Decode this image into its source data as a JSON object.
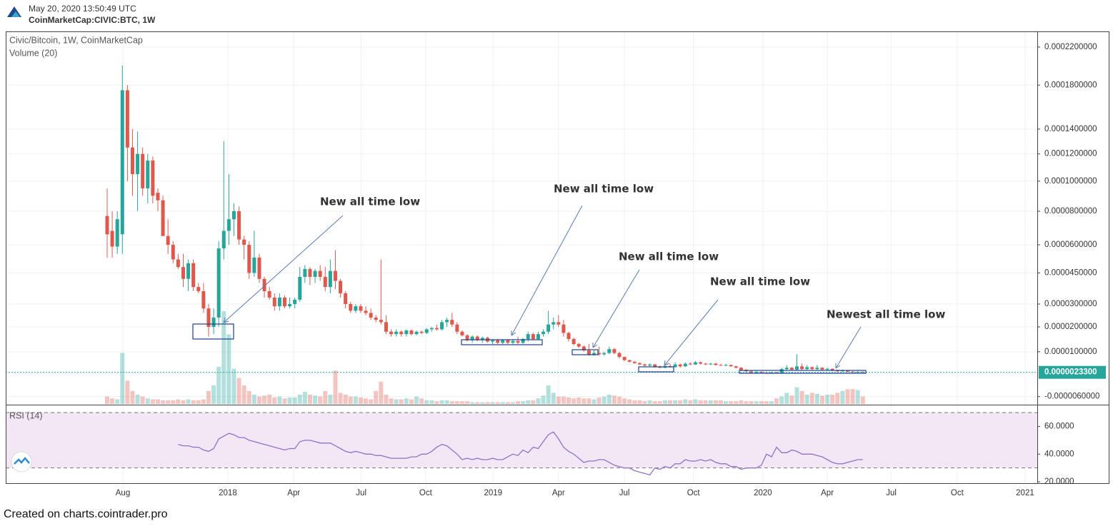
{
  "header": {
    "timestamp": "May 20, 2020 13:50:49 UTC",
    "symbol": "CoinMarketCap:CIVIC:BTC, 1W"
  },
  "footer": "Created on charts.cointrader.pro",
  "chart_data": {
    "type": "candlestick",
    "title": "Civic/Bitcoin, 1W, CoinMarketCap",
    "up_color": "#26a69a",
    "down_color": "#e0574b",
    "grid": true,
    "log_scale": true,
    "open": [
      7.7e-05,
      6.8e-05,
      5.9e-05,
      6.6e-05,
      0.000175,
      0.000125,
      0.000105,
      0.00012,
      9.5e-05,
      0.000115,
      9.2e-05,
      8.7e-05,
      6.5e-05,
      6e-05,
      5.2e-05,
      4.8e-05,
      4.2e-05,
      5e-05,
      3.8e-05,
      3.6e-05,
      2.8e-05,
      2e-05,
      2.4e-05,
      5.8e-05,
      6.8e-05,
      7.5e-05,
      8e-05,
      6.3e-05,
      6e-05,
      4.5e-05,
      5.3e-05,
      4.2e-05,
      3.6e-05,
      3.3e-05,
      2.9e-05,
      3.3e-05,
      2.9e-05,
      3e-05,
      3.2e-05,
      4.3e-05,
      4.7e-05,
      4.3e-05,
      4.6e-05,
      4.3e-05,
      3.8e-05,
      4.6e-05,
      4.1e-05,
      3.5e-05,
      3e-05,
      2.7e-05,
      2.9e-05,
      2.7e-05,
      2.6e-05,
      2.4e-05,
      2.3e-05,
      2.2e-05,
      1.8e-05,
      1.7e-05,
      1.8e-05,
      1.7e-05,
      1.85e-05,
      1.7e-05,
      1.8e-05,
      1.75e-05,
      1.9e-05,
      1.95e-05,
      1.9e-05,
      2.2e-05,
      2.3e-05,
      2.1e-05,
      1.8e-05,
      1.65e-05,
      1.45e-05,
      1.6e-05,
      1.45e-05,
      1.55e-05,
      1.4e-05,
      1.45e-05,
      1.35e-05,
      1.45e-05,
      1.35e-05,
      1.42e-05,
      1.35e-05,
      1.5e-05,
      1.7e-05,
      1.5e-05,
      1.7e-05,
      1.8e-05,
      2.1e-05,
      2.2e-05,
      2.1e-05,
      1.75e-05,
      1.5e-05,
      1.3e-05,
      1.2e-05,
      1.05e-05,
      9e-06,
      9.5e-06,
      9e-06,
      9.5e-06,
      1.1e-05,
      9.5e-06,
      8e-06,
      6.8e-06,
      6.2e-06,
      5.7e-06,
      5.2e-06,
      4.8e-06,
      5.2e-06,
      4.3e-06,
      4e-06,
      4.6e-06,
      4.2e-06,
      5.2e-06,
      4.5e-06,
      5.5e-06,
      5.2e-06,
      6e-06,
      5.5e-06,
      5.2e-06,
      5.5e-06,
      5e-06,
      4.8e-06,
      5e-06,
      4.5e-06,
      4e-06,
      3.2e-06,
      2.7e-06,
      2.2e-06,
      2.5e-06,
      2.2e-06,
      2e-06,
      2.3e-06,
      2.1e-06,
      3.5e-06,
      4e-06,
      3.3e-06,
      4.5e-06,
      3.5e-06,
      4.2e-06,
      3.5e-06,
      4e-06,
      3.3e-06,
      3.6e-06,
      3e-06,
      2.7e-06,
      3e-06,
      2.6e-06,
      2.4e-06,
      2.5e-06
    ],
    "high": [
      9.5e-05,
      8e-05,
      8e-05,
      0.0002,
      0.00018,
      0.00014,
      0.000138,
      0.000125,
      0.00012,
      0.000118,
      9.5e-05,
      9e-05,
      7.5e-05,
      6.2e-05,
      5.5e-05,
      5.5e-05,
      5.2e-05,
      5.2e-05,
      4e-05,
      4e-05,
      3e-05,
      2.8e-05,
      6.2e-05,
      0.00013,
      0.000105,
      8.5e-05,
      8.3e-05,
      6.5e-05,
      6.2e-05,
      6.8e-05,
      5.5e-05,
      4.3e-05,
      3.8e-05,
      3.5e-05,
      3.5e-05,
      3.4e-05,
      3.3e-05,
      3.3e-05,
      4.8e-05,
      4.9e-05,
      4.8e-05,
      4.7e-05,
      4.9e-05,
      4.8e-05,
      5.2e-05,
      5.7e-05,
      4.2e-05,
      3.6e-05,
      3.1e-05,
      3e-05,
      3e-05,
      2.9e-05,
      2.8e-05,
      2.5e-05,
      5.2e-05,
      2.5e-05,
      1.9e-05,
      1.9e-05,
      1.85e-05,
      1.9e-05,
      1.9e-05,
      1.85e-05,
      1.85e-05,
      1.95e-05,
      2e-05,
      2.1e-05,
      2.3e-05,
      2.4e-05,
      2.6e-05,
      2.2e-05,
      1.85e-05,
      1.7e-05,
      1.65e-05,
      1.65e-05,
      1.6e-05,
      1.6e-05,
      1.5e-05,
      1.5e-05,
      1.5e-05,
      1.5e-05,
      1.5e-05,
      1.6e-05,
      1.55e-05,
      1.8e-05,
      1.75e-05,
      1.8e-05,
      1.9e-05,
      2.7e-05,
      2.4e-05,
      2.5e-05,
      2.3e-05,
      1.8e-05,
      1.55e-05,
      1.35e-05,
      1.25e-05,
      1.3e-05,
      1.05e-05,
      1.2e-05,
      1e-05,
      1.2e-05,
      1.15e-05,
      1e-05,
      8.2e-06,
      7e-06,
      6.4e-06,
      6e-06,
      5.5e-06,
      5.5e-06,
      5.4e-06,
      4.8e-06,
      5e-06,
      5.5e-06,
      6e-06,
      5.5e-06,
      6e-06,
      6e-06,
      6.5e-06,
      6.3e-06,
      5.8e-06,
      5.8e-06,
      5.8e-06,
      5.5e-06,
      5.5e-06,
      5.2e-06,
      4.8e-06,
      4.2e-06,
      3.5e-06,
      3e-06,
      3e-06,
      2.8e-06,
      2.6e-06,
      2.6e-06,
      2.5e-06,
      4e-06,
      5e-06,
      4.2e-06,
      9e-06,
      5.5e-06,
      5e-06,
      4.5e-06,
      5e-06,
      4.2e-06,
      4e-06,
      3.8e-06,
      3.3e-06,
      3.3e-06,
      3.2e-06,
      2.8e-06,
      2.8e-06,
      2.7e-06
    ],
    "low": [
      5.3e-05,
      5.3e-05,
      5.5e-05,
      5.5e-05,
      0.0001,
      9e-05,
      8e-05,
      9e-05,
      8.5e-05,
      8.5e-05,
      8e-05,
      6.5e-05,
      5.5e-05,
      5e-05,
      4.7e-05,
      3.8e-05,
      3.6e-05,
      3.6e-05,
      3.5e-05,
      2.6e-05,
      1.6e-05,
      1.7e-05,
      2e-05,
      5.2e-05,
      6e-05,
      6.5e-05,
      6e-05,
      5.2e-05,
      4.2e-05,
      4.3e-05,
      4e-05,
      3.3e-05,
      3.2e-05,
      2.7e-05,
      2.7e-05,
      2.8e-05,
      2.8e-05,
      2.8e-05,
      3.1e-05,
      4e-05,
      3.9e-05,
      4e-05,
      4.1e-05,
      3.6e-05,
      3.5e-05,
      3.7e-05,
      3.3e-05,
      2.8e-05,
      2.6e-05,
      2.6e-05,
      2.6e-05,
      2.5e-05,
      2.3e-05,
      2.2e-05,
      2.1e-05,
      1.7e-05,
      1.6e-05,
      1.6e-05,
      1.6e-05,
      1.6e-05,
      1.65e-05,
      1.65e-05,
      1.7e-05,
      1.7e-05,
      1.8e-05,
      1.85e-05,
      1.85e-05,
      2e-05,
      2e-05,
      1.7e-05,
      1.6e-05,
      1.4e-05,
      1.35e-05,
      1.4e-05,
      1.35e-05,
      1.35e-05,
      1.3e-05,
      1.3e-05,
      1.3e-05,
      1.3e-05,
      1.3e-05,
      1.3e-05,
      1.3e-05,
      1.4e-05,
      1.45e-05,
      1.45e-05,
      1.6e-05,
      1.7e-05,
      1.9e-05,
      2e-05,
      1.6e-05,
      1.4e-05,
      1.25e-05,
      1.15e-05,
      1e-05,
      8.5e-06,
      8.5e-06,
      8.5e-06,
      8.5e-06,
      9e-06,
      9e-06,
      7.5e-06,
      6.5e-06,
      6e-06,
      5.5e-06,
      5e-06,
      4.5e-06,
      4.5e-06,
      4e-06,
      3.8e-06,
      3.8e-06,
      4e-06,
      4e-06,
      4e-06,
      4.3e-06,
      5e-06,
      5e-06,
      5.2e-06,
      5e-06,
      5e-06,
      4.8e-06,
      4.7e-06,
      4.6e-06,
      4.4e-06,
      3.8e-06,
      3e-06,
      2.5e-06,
      2e-06,
      2e-06,
      2e-06,
      1.8e-06,
      1.8e-06,
      2e-06,
      2e-06,
      3e-06,
      3e-06,
      3e-06,
      3e-06,
      3e-06,
      3e-06,
      3.2e-06,
      3e-06,
      3e-06,
      2.8e-06,
      2.5e-06,
      2.5e-06,
      2.4e-06,
      2.2e-06,
      2.2e-06,
      2.2e-06
    ],
    "close": [
      6.6e-05,
      5.9e-05,
      7.5e-05,
      0.000175,
      0.000125,
      0.000105,
      0.00012,
      9.5e-05,
      0.000115,
      9e-05,
      8.7e-05,
      6.5e-05,
      6e-05,
      5.2e-05,
      4.8e-05,
      4.2e-05,
      5e-05,
      3.8e-05,
      3.6e-05,
      2.8e-05,
      2e-05,
      2.4e-05,
      5.8e-05,
      6.8e-05,
      7.5e-05,
      8e-05,
      6.3e-05,
      6e-05,
      4.5e-05,
      5.3e-05,
      4.2e-05,
      3.6e-05,
      3.3e-05,
      2.9e-05,
      3.3e-05,
      2.9e-05,
      3e-05,
      3.2e-05,
      4.3e-05,
      4.7e-05,
      4.3e-05,
      4.6e-05,
      4.3e-05,
      3.8e-05,
      4.6e-05,
      4.1e-05,
      3.5e-05,
      3e-05,
      2.7e-05,
      2.9e-05,
      2.7e-05,
      2.6e-05,
      2.4e-05,
      2.3e-05,
      2.2e-05,
      1.8e-05,
      1.7e-05,
      1.8e-05,
      1.7e-05,
      1.85e-05,
      1.7e-05,
      1.8e-05,
      1.75e-05,
      1.9e-05,
      1.95e-05,
      1.9e-05,
      2.2e-05,
      2.3e-05,
      2.1e-05,
      1.8e-05,
      1.65e-05,
      1.45e-05,
      1.6e-05,
      1.45e-05,
      1.55e-05,
      1.4e-05,
      1.45e-05,
      1.35e-05,
      1.45e-05,
      1.35e-05,
      1.42e-05,
      1.35e-05,
      1.5e-05,
      1.7e-05,
      1.5e-05,
      1.7e-05,
      1.8e-05,
      2.1e-05,
      2.2e-05,
      2.1e-05,
      1.75e-05,
      1.5e-05,
      1.3e-05,
      1.2e-05,
      1.05e-05,
      9e-06,
      9.5e-06,
      9e-06,
      9.5e-06,
      1.1e-05,
      9.5e-06,
      8e-06,
      6.8e-06,
      6.2e-06,
      5.7e-06,
      5.2e-06,
      4.8e-06,
      5.2e-06,
      4.3e-06,
      4e-06,
      4.6e-06,
      4.2e-06,
      5.2e-06,
      4.5e-06,
      5.5e-06,
      5.2e-06,
      6e-06,
      5.5e-06,
      5.2e-06,
      5.5e-06,
      5e-06,
      4.8e-06,
      5e-06,
      4.5e-06,
      4e-06,
      3.2e-06,
      2.7e-06,
      2.2e-06,
      2.5e-06,
      2.2e-06,
      2e-06,
      2.3e-06,
      2.1e-06,
      3.5e-06,
      4e-06,
      3.3e-06,
      4.5e-06,
      3.5e-06,
      4.2e-06,
      3.5e-06,
      4e-06,
      3.3e-06,
      3.6e-06,
      3e-06,
      2.7e-06,
      3e-06,
      2.6e-06,
      2.4e-06,
      2.5e-06,
      2.33e-06
    ],
    "volume": {
      "name": "Volume (20)",
      "values": [
        8,
        6,
        5,
        55,
        25,
        14,
        10,
        8,
        6,
        5,
        5,
        4,
        4,
        4,
        5,
        4,
        5,
        4,
        4,
        5,
        14,
        20,
        40,
        100,
        75,
        38,
        28,
        20,
        14,
        10,
        8,
        9,
        10,
        7,
        8,
        6,
        7,
        7,
        10,
        13,
        10,
        9,
        8,
        14,
        10,
        36,
        12,
        10,
        8,
        8,
        7,
        6,
        5,
        14,
        24,
        10,
        6,
        5,
        5,
        6,
        5,
        8,
        6,
        4,
        4,
        3,
        4,
        4,
        3,
        3,
        3,
        3,
        2,
        2,
        2,
        2,
        2,
        2,
        2,
        2,
        2,
        3,
        3,
        4,
        4,
        6,
        9,
        20,
        12,
        8,
        8,
        7,
        6,
        7,
        6,
        6,
        5,
        7,
        8,
        10,
        9,
        8,
        6,
        5,
        4,
        4,
        3,
        4,
        3,
        3,
        4,
        4,
        4,
        4,
        5,
        4,
        5,
        4,
        4,
        4,
        4,
        4,
        3,
        3,
        3,
        4,
        3,
        3,
        3,
        3,
        3,
        3,
        6,
        8,
        12,
        9,
        18,
        14,
        10,
        12,
        11,
        9,
        10,
        10,
        12,
        14,
        16,
        16,
        15,
        8
      ]
    },
    "ylim": [
      -8.4e-06,
      0.000238
    ],
    "yticks": [
      {
        "value": 0.00022,
        "label": "0.0002200000"
      },
      {
        "value": 0.00018,
        "label": "0.0001800000"
      },
      {
        "value": 0.00014,
        "label": "0.0001400000"
      },
      {
        "value": 0.00012,
        "label": "0.0001200000"
      },
      {
        "value": 0.0001,
        "label": "0.0001000000"
      },
      {
        "value": 8e-05,
        "label": "0.0000800000"
      },
      {
        "value": 6e-05,
        "label": "0.0000600000"
      },
      {
        "value": 4.5e-05,
        "label": "0.0000450000"
      },
      {
        "value": 3e-05,
        "label": "0.0000300000"
      },
      {
        "value": 2e-05,
        "label": "0.0000200000"
      },
      {
        "value": 1e-05,
        "label": "0.0000100000"
      },
      {
        "value": -6e-06,
        "label": "-0.0000060000"
      }
    ],
    "xlim": [
      -20,
      183.4
    ],
    "xticks": [
      {
        "value": 3.1,
        "label": "Aug"
      },
      {
        "value": 23.8,
        "label": "2018"
      },
      {
        "value": 36.8,
        "label": "Apr"
      },
      {
        "value": 50.1,
        "label": "Jul"
      },
      {
        "value": 62.8,
        "label": "Oct"
      },
      {
        "value": 76.1,
        "label": "2019"
      },
      {
        "value": 89,
        "label": "Apr"
      },
      {
        "value": 102,
        "label": "Jul"
      },
      {
        "value": 115.6,
        "label": "Oct"
      },
      {
        "value": 129.3,
        "label": "2020"
      },
      {
        "value": 142,
        "label": "Apr"
      },
      {
        "value": 154.6,
        "label": "Jul"
      },
      {
        "value": 167.6,
        "label": "Oct"
      },
      {
        "value": 181,
        "label": "2021"
      }
    ],
    "last_price": {
      "value": 2.33e-06,
      "label": "0.0000023300"
    },
    "annotations": [
      "New all time low",
      "New all time low",
      "New all time low",
      "New all time low",
      "Newest all time low"
    ],
    "rsi": {
      "name": "RSI (14)",
      "color": "#8e72c9",
      "band_color": "#f3e6f5",
      "ylim": [
        19,
        75.2
      ],
      "yticks": [
        {
          "value": 60,
          "label": "60.0000"
        },
        {
          "value": 40,
          "label": "40.0000"
        },
        {
          "value": 20,
          "label": "20.0000"
        }
      ],
      "bands": [
        30,
        70
      ],
      "values": [
        null,
        null,
        null,
        null,
        null,
        null,
        null,
        null,
        null,
        null,
        null,
        null,
        null,
        null,
        47,
        46,
        46,
        45,
        45,
        43,
        42,
        44,
        51,
        53,
        55,
        54,
        52,
        52,
        50,
        49,
        48,
        47,
        46,
        45,
        44,
        43,
        44,
        44,
        49,
        50,
        50,
        49,
        48,
        48,
        48,
        46,
        44,
        42,
        41,
        42,
        41,
        40,
        40,
        39,
        39,
        38,
        37,
        37,
        37,
        37,
        38,
        38,
        40,
        40,
        42,
        45,
        47,
        46,
        43,
        40,
        36,
        37,
        36,
        37,
        36,
        36,
        37,
        36,
        36,
        38,
        40,
        39,
        43,
        41,
        45,
        44,
        49,
        54,
        56,
        51,
        45,
        42,
        40,
        37,
        34,
        35,
        35,
        36,
        36,
        34,
        32,
        31,
        30,
        30,
        28,
        27,
        26,
        25,
        30,
        29,
        31,
        30,
        33,
        33,
        36,
        35,
        35,
        36,
        35,
        36,
        34,
        33,
        33,
        31,
        31,
        29,
        30,
        30,
        30,
        32,
        40,
        38,
        45,
        41,
        41,
        43,
        42,
        40,
        40,
        40,
        39,
        38,
        36,
        34,
        33,
        33,
        34,
        35,
        36,
        36
      ]
    }
  }
}
